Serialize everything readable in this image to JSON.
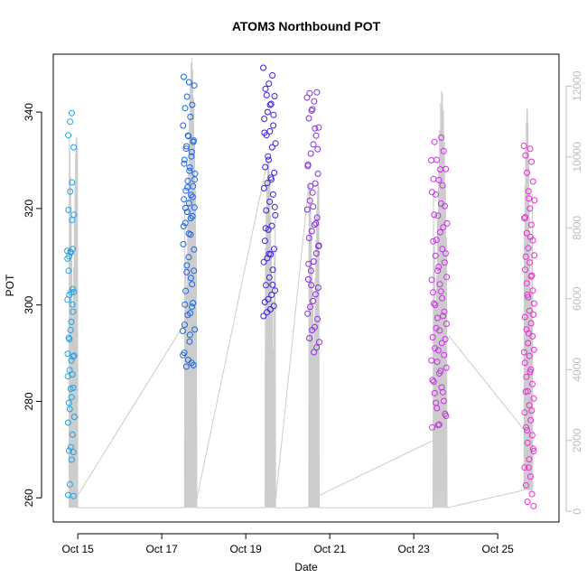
{
  "chart_data": {
    "type": "scatter",
    "title": "ATOM3 Northbound POT",
    "xlabel": "Date",
    "ylabel": "POT",
    "xlim": [
      "2023-10-14T10:00",
      "2023-10-26T11:00"
    ],
    "ylim": [
      255,
      352
    ],
    "y2lim": [
      -300,
      12900
    ],
    "x_ticks": [
      {
        "value": "2023-10-15",
        "label": "Oct 15"
      },
      {
        "value": "2023-10-17",
        "label": "Oct 17"
      },
      {
        "value": "2023-10-19",
        "label": "Oct 19"
      },
      {
        "value": "2023-10-21",
        "label": "Oct 21"
      },
      {
        "value": "2023-10-23",
        "label": "Oct 23"
      },
      {
        "value": "2023-10-25",
        "label": "Oct 25"
      }
    ],
    "y_ticks": [
      260,
      280,
      300,
      320,
      340
    ],
    "y2_ticks": [
      0,
      2000,
      4000,
      6000,
      8000,
      10000,
      12000
    ],
    "colors": {
      "line": "#cccccc",
      "right_axis": "#bdbdbd",
      "group_colors": [
        "#1ba3e6",
        "#1565e8",
        "#3a1fe0",
        "#8a2be2",
        "#c92fe6",
        "#ee2ad3"
      ]
    },
    "series": [
      {
        "date_range": [
          "2023-10-14T18:00",
          "2023-10-14T22:00"
        ],
        "color": "#1ba3e6",
        "pot": [
          311.2,
          311.6,
          310.9,
          310.1,
          309.6,
          303.3,
          302.6,
          302.1,
          301.1,
          298.6,
          296.5,
          292.9,
          289.9,
          289.3,
          288.5,
          286.5,
          285.2,
          282.8,
          280.9,
          278.4,
          275.6,
          269.5,
          267.9,
          262.8,
          260.6,
          260.4,
          339.8,
          338.0,
          335.2,
          332.7,
          325.4,
          323.5,
          319.7,
          318.7,
          317.6,
          311.0,
          307.1,
          302.7,
          300.1,
          294.8,
          293.2,
          289.5,
          285.6,
          282.6,
          279.7,
          276.8,
          273.1,
          270.5,
          269.8
        ]
      },
      {
        "date_range": [
          "2023-10-17T12:00",
          "2023-10-17T19:00"
        ],
        "color": "#1565e8",
        "pot": [
          294.6,
          293.8,
          295.9,
          299.6,
          306.8,
          307.1,
          309.9,
          312.6,
          314.6,
          317.0,
          318.4,
          319.3,
          320.2,
          321.1,
          321.9,
          322.8,
          323.7,
          324.6,
          325.7,
          327.2,
          328.5,
          330.1,
          331.7,
          332.9,
          334.1,
          335.0,
          337.2,
          339.0,
          340.8,
          341.5,
          343.2,
          345.5,
          346.2,
          347.3,
          305.6,
          302.9,
          300.4,
          297.9,
          294.9,
          292.4,
          290.1,
          288.0,
          287.2,
          287.5,
          288.6,
          289.6,
          298.3,
          300.1,
          304.3,
          308.2,
          311.5,
          314.8,
          316.3,
          318.0,
          320.1,
          322.4,
          324.4,
          326.0,
          327.8,
          329.3,
          330.8,
          332.4,
          333.8,
          335.1
        ]
      },
      {
        "date_range": [
          "2023-10-19T10:00",
          "2023-10-19T17:00"
        ],
        "color": "#3a1fe0",
        "pot": [
          349.2,
          347.6,
          345.9,
          344.8,
          343.3,
          341.7,
          340.0,
          338.6,
          337.2,
          336.0,
          335.2,
          333.5,
          332.7,
          330.1,
          328.6,
          327.4,
          326.4,
          325.3,
          324.2,
          322.9,
          321.4,
          319.6,
          318.6,
          316.4,
          315.6,
          313.3,
          311.6,
          310.5,
          309.7,
          308.9,
          307.3,
          305.7,
          304.1,
          303.0,
          302.1,
          301.2,
          300.6,
          299.8,
          299.1,
          298.5,
          297.7,
          304.2,
          310.6,
          315.9,
          320.3,
          326.0,
          330.8,
          335.7,
          339.4,
          341.5,
          343.5
        ]
      },
      {
        "date_range": [
          "2023-10-20T11:00",
          "2023-10-20T18:00"
        ],
        "color": "#8a2be2",
        "pot": [
          343.0,
          344.1,
          342.2,
          340.3,
          338.7,
          336.8,
          335.1,
          333.3,
          331.4,
          329.1,
          327.2,
          325.2,
          323.3,
          321.6,
          319.8,
          318.1,
          316.6,
          315.3,
          313.9,
          312.3,
          310.7,
          309.0,
          307.1,
          305.3,
          303.6,
          302.2,
          300.8,
          299.6,
          298.2,
          297.1,
          295.4,
          294.8,
          293.1,
          292.3,
          291.2,
          290.2,
          304.1,
          308.5,
          312.2,
          316.9,
          320.4,
          324.6,
          328.8,
          332.3,
          336.6,
          340.6,
          343.9
        ]
      },
      {
        "date_range": [
          "2023-10-23T10:00",
          "2023-10-23T19:00"
        ],
        "color": "#c92fe6",
        "pot": [
          330.0,
          328.1,
          326.1,
          324.8,
          322.9,
          320.5,
          318.5,
          316.9,
          315.1,
          313.2,
          311.6,
          310.2,
          308.8,
          307.1,
          305.8,
          304.3,
          302.6,
          301.4,
          300.0,
          298.6,
          297.3,
          296.1,
          294.7,
          293.3,
          292.1,
          291.0,
          289.6,
          288.2,
          287.0,
          285.8,
          284.4,
          282.9,
          281.7,
          280.1,
          278.6,
          277.0,
          275.2,
          274.6,
          334.7,
          333.8,
          331.9,
          330.1,
          328.2,
          325.9,
          323.4,
          321.0,
          318.7,
          316.1,
          313.5,
          310.7,
          307.9,
          305.2,
          302.8,
          300.3,
          297.7,
          295.2,
          292.9,
          290.6,
          288.5,
          286.3,
          284.1,
          281.9,
          279.7,
          277.4,
          275.1
        ]
      },
      {
        "date_range": [
          "2023-10-25T15:00",
          "2023-10-25T21:00"
        ],
        "color": "#ee2ad3",
        "pot": [
          333.0,
          332.4,
          331.0,
          329.7,
          327.4,
          325.6,
          323.6,
          321.7,
          320.0,
          318.2,
          316.6,
          314.9,
          313.4,
          311.8,
          310.3,
          308.8,
          307.3,
          305.9,
          304.5,
          303.0,
          301.6,
          300.3,
          298.8,
          297.5,
          296.2,
          294.9,
          293.5,
          292.1,
          290.7,
          289.4,
          288.0,
          286.6,
          285.1,
          283.6,
          282.1,
          280.6,
          279.2,
          277.7,
          276.1,
          274.6,
          273.0,
          271.4,
          269.7,
          268.0,
          266.3,
          264.4,
          262.6,
          260.8,
          259.2,
          258.3,
          322.1,
          318.0,
          314.1,
          310.0,
          306.1,
          302.1,
          298.0,
          294.1,
          290.2,
          286.1,
          282.0,
          278.1,
          274.0,
          270.2,
          266.3
        ]
      }
    ],
    "line_series": {
      "axis": "right",
      "segments": [
        {
          "from": "2023-10-14T19:00",
          "to": "2023-10-15T00:00",
          "spike_max": 10600,
          "baseline": 100
        },
        {
          "from": "2023-10-17T13:00",
          "to": "2023-10-17T20:00",
          "spike_max": 12800,
          "baseline": 100
        },
        {
          "from": "2023-10-19T11:00",
          "to": "2023-10-19T17:00",
          "spike_max": 10000,
          "baseline": 100
        },
        {
          "from": "2023-10-20T12:00",
          "to": "2023-10-20T18:00",
          "spike_max": 9300,
          "baseline": 100
        },
        {
          "from": "2023-10-23T11:00",
          "to": "2023-10-23T19:00",
          "spike_max": 11900,
          "baseline": 100
        },
        {
          "from": "2023-10-25T15:00",
          "to": "2023-10-25T20:00",
          "spike_max": 11400,
          "baseline": 600
        }
      ],
      "connectors": [
        {
          "x": "2023-10-15T00:00",
          "y": 450
        },
        {
          "x": "2023-10-17T13:00",
          "y": 5300
        },
        {
          "x": "2023-10-17T20:00",
          "y": 350
        },
        {
          "x": "2023-10-19T12:00",
          "y": 9800
        },
        {
          "x": "2023-10-19T17:00",
          "y": 300
        },
        {
          "x": "2023-10-20T12:00",
          "y": 9200
        },
        {
          "x": "2023-10-20T18:00",
          "y": 450
        },
        {
          "x": "2023-10-23T11:00",
          "y": 2000
        },
        {
          "x": "2023-10-23T20:00",
          "y": 4950
        },
        {
          "x": "2023-10-25T15:00",
          "y": 2300
        }
      ]
    }
  }
}
